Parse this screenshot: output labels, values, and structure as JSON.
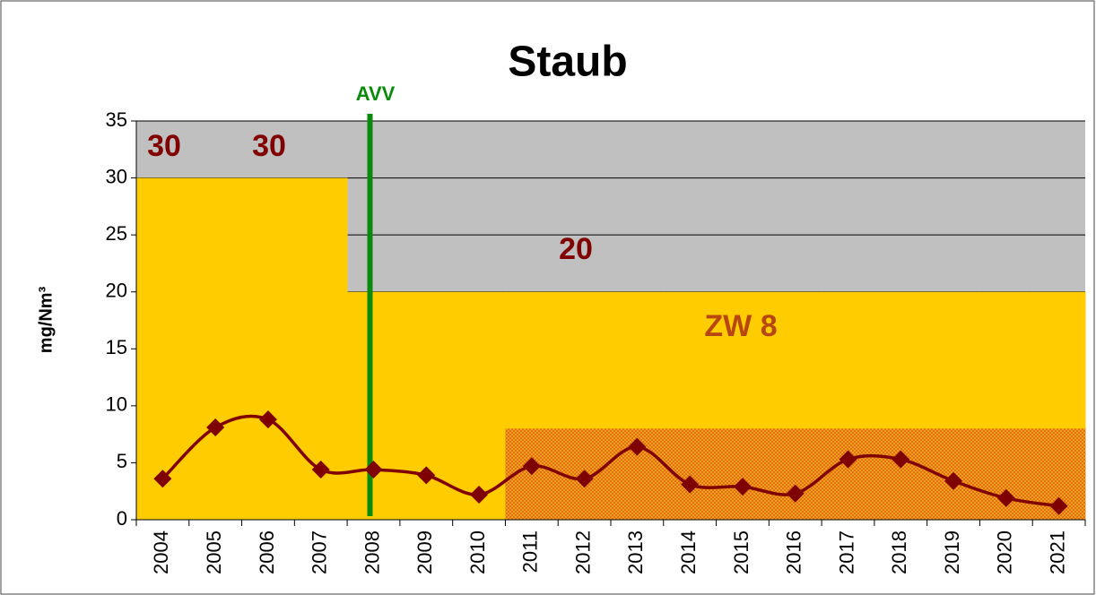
{
  "chart_data": {
    "type": "line",
    "title": "Staub",
    "y_label": "mg/Nm³",
    "categories": [
      "2004",
      "2005",
      "2006",
      "2007",
      "2008",
      "2009",
      "2010",
      "2011",
      "2012",
      "2013",
      "2014",
      "2015",
      "2016",
      "2017",
      "2018",
      "2019",
      "2020",
      "2021"
    ],
    "series": [
      {
        "name": "Staub",
        "color": "#7f0000",
        "values": [
          3.6,
          8.1,
          8.8,
          4.4,
          4.4,
          3.9,
          2.2,
          4.7,
          3.6,
          6.4,
          3.1,
          2.9,
          2.3,
          5.3,
          5.3,
          3.4,
          1.9,
          1.2
        ]
      }
    ],
    "limit": {
      "color": "#ffcc00",
      "values": [
        30,
        30,
        30,
        30,
        20,
        20,
        20,
        20,
        20,
        20,
        20,
        20,
        20,
        20,
        20,
        20,
        20,
        20
      ]
    },
    "zw": {
      "color": "#e8900a",
      "values": [
        null,
        null,
        null,
        null,
        null,
        null,
        null,
        8,
        8,
        8,
        8,
        8,
        8,
        8,
        8,
        8,
        8,
        8
      ]
    },
    "vline": {
      "label": "AVV",
      "category": "2008",
      "color": "#0a8a0a"
    },
    "annotations": [
      "30",
      "30",
      "20",
      "ZW 8"
    ],
    "ylim": [
      0,
      35
    ],
    "yticks": [
      0,
      5,
      10,
      15,
      20,
      25,
      30,
      35
    ],
    "grid": true
  }
}
